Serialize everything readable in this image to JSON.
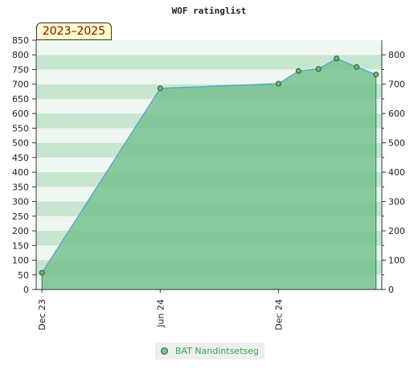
{
  "title": "WOF ratinglist",
  "period_label": "2023–2025",
  "colors": {
    "fill": "#77c18f",
    "line": "#4f9fd8",
    "marker": "#66bb77",
    "marker_stroke": "#335533",
    "band_dark": "#c6e6d0",
    "band_light": "#eef8f0"
  },
  "chart_data": {
    "type": "area",
    "title": "WOF ratinglist",
    "xlabel": "",
    "ylabel": "",
    "left_ylim": [
      0,
      850
    ],
    "left_ticks": [
      0,
      50,
      100,
      150,
      200,
      250,
      300,
      350,
      400,
      450,
      500,
      550,
      600,
      650,
      700,
      750,
      800,
      850
    ],
    "right_ylim": [
      0,
      850
    ],
    "right_ticks": [
      0,
      100,
      200,
      300,
      400,
      500,
      600,
      700,
      800
    ],
    "xlim": [
      "2023-11-22",
      "2025-05-10"
    ],
    "x_ticks": [
      {
        "date": "2023-12-01",
        "label": "Dec 23"
      },
      {
        "date": "2024-06-01",
        "label": "Jun 24"
      },
      {
        "date": "2024-12-01",
        "label": "Dec 24"
      }
    ],
    "grid": true,
    "legend_position": "bottom",
    "series": [
      {
        "name": "BAT Nandintsetseg",
        "x": [
          "2023-12-01",
          "2024-06-01",
          "2024-12-01",
          "2025-01-01",
          "2025-02-01",
          "2025-03-01",
          "2025-04-01",
          "2025-05-01"
        ],
        "values": [
          57,
          686,
          702,
          745,
          752,
          788,
          759,
          733
        ]
      }
    ]
  }
}
